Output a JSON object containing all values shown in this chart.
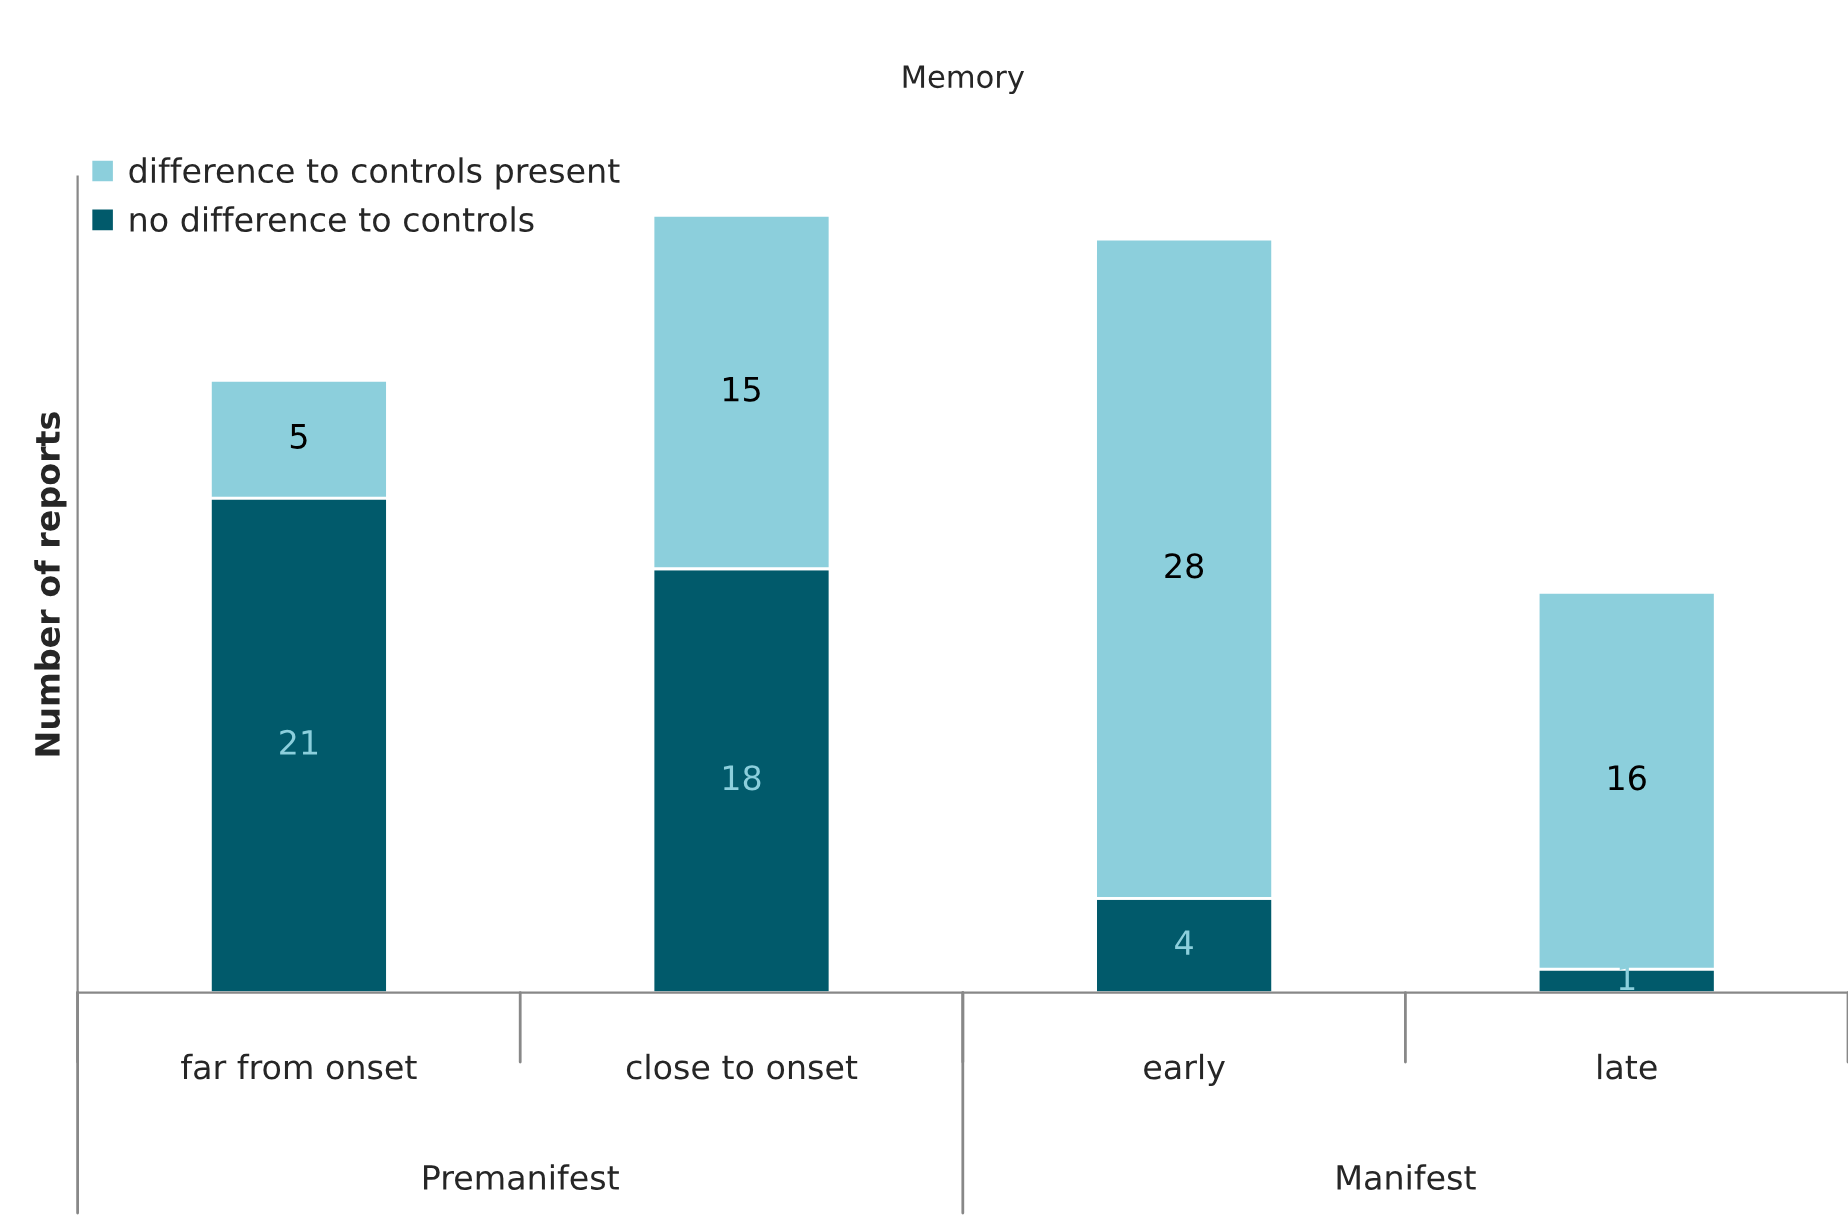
{
  "chart_data": {
    "type": "bar",
    "title": "Memory",
    "ylabel": "Number of reports",
    "categories": [
      "far from onset",
      "close to onset",
      "early",
      "late"
    ],
    "stacked": true,
    "data_labels": true,
    "legend": "top left",
    "grid": false,
    "tick_labels": "x",
    "series": [
      {
        "name": "no difference to controls",
        "color": "#015a6b",
        "values": [
          21,
          18,
          4,
          1
        ]
      },
      {
        "name": "difference to controls present",
        "color": "#8ccfdc",
        "values": [
          5,
          15,
          28,
          16
        ]
      }
    ],
    "annotations": [
      "Premanifest",
      "Manifest"
    ]
  }
}
